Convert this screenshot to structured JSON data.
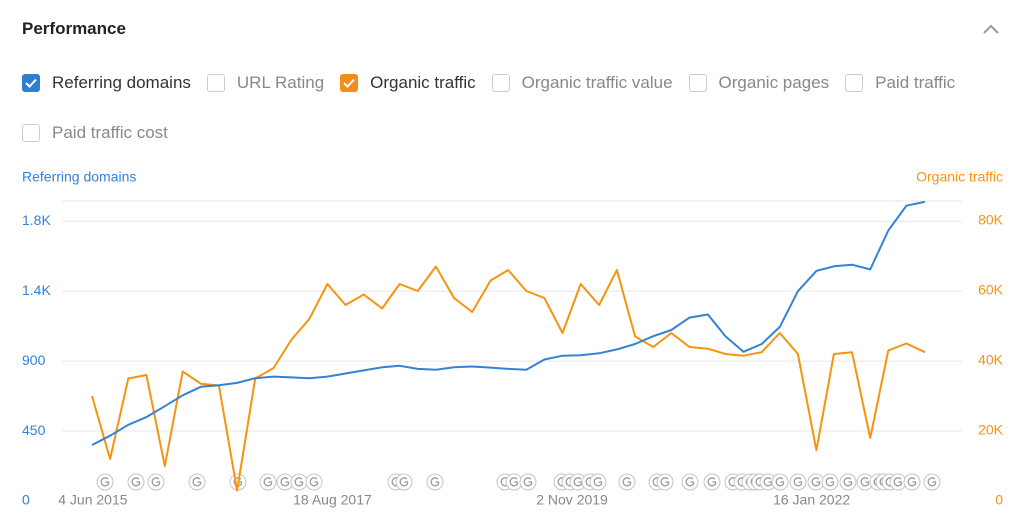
{
  "header": {
    "title": "Performance"
  },
  "filters": [
    {
      "label": "Referring domains",
      "checked": true,
      "color": "#2f7fd1"
    },
    {
      "label": "URL Rating",
      "checked": false
    },
    {
      "label": "Organic traffic",
      "checked": true,
      "color": "#f28c1c"
    },
    {
      "label": "Organic traffic value",
      "checked": false
    },
    {
      "label": "Organic pages",
      "checked": false
    },
    {
      "label": "Paid traffic",
      "checked": false
    },
    {
      "label": "Paid traffic cost",
      "checked": false
    }
  ],
  "chart_data": {
    "type": "line",
    "x": [
      "2015-06-01",
      "2015-08-01",
      "2015-10-01",
      "2015-12-01",
      "2016-02-01",
      "2016-04-01",
      "2016-06-01",
      "2016-08-01",
      "2016-10-01",
      "2016-12-01",
      "2017-02-01",
      "2017-04-01",
      "2017-06-01",
      "2017-08-01",
      "2017-10-01",
      "2017-12-01",
      "2018-02-01",
      "2018-04-01",
      "2018-06-01",
      "2018-08-01",
      "2018-10-01",
      "2018-12-01",
      "2019-02-01",
      "2019-04-01",
      "2019-06-01",
      "2019-08-01",
      "2019-10-01",
      "2019-12-01",
      "2020-02-01",
      "2020-04-01",
      "2020-06-01",
      "2020-08-01",
      "2020-10-01",
      "2020-12-01",
      "2021-02-01",
      "2021-04-01",
      "2021-06-01",
      "2021-08-01",
      "2021-10-01",
      "2021-12-01",
      "2022-02-01",
      "2022-04-01",
      "2022-06-01",
      "2022-08-01",
      "2022-10-01",
      "2022-12-01",
      "2023-02-01"
    ],
    "xlim": [
      "2015-06-01",
      "2023-02-25"
    ],
    "xticks": [
      {
        "value": "2015-06-04",
        "label": "4 Jun 2015"
      },
      {
        "value": "2017-08-18",
        "label": "18 Aug 2017"
      },
      {
        "value": "2019-11-02",
        "label": "2 Nov 2019"
      },
      {
        "value": "2022-01-16",
        "label": "16 Jan 2022"
      }
    ],
    "ylim": [
      0,
      1930
    ],
    "yticks": [
      0,
      450,
      900,
      {
        "value": 1350,
        "label": "1.4K"
      },
      {
        "value": 1800,
        "label": "1.8K"
      }
    ],
    "y2lim": [
      0,
      85700
    ],
    "y2ticks": [
      0,
      {
        "value": 20000,
        "label": "20K"
      },
      {
        "value": 40000,
        "label": "40K"
      },
      {
        "value": 60000,
        "label": "60K"
      },
      {
        "value": 80000,
        "label": "80K"
      }
    ],
    "grid": true,
    "series": [
      {
        "name": "Referring domains",
        "color": "#3582d3",
        "values": [
          360,
          420,
          490,
          540,
          610,
          680,
          735,
          745,
          760,
          790,
          800,
          795,
          790,
          800,
          820,
          840,
          860,
          870,
          850,
          845,
          860,
          865,
          858,
          850,
          845,
          910,
          935,
          938,
          950,
          975,
          1010,
          1060,
          1100,
          1180,
          1200,
          1060,
          960,
          1010,
          1120,
          1350,
          1480,
          1510,
          1520,
          1490,
          1740,
          1900,
          1925
        ]
      },
      {
        "name": "Organic traffic",
        "color": "#f6930f",
        "axis": "y2",
        "values": [
          30000,
          12000,
          35000,
          36000,
          10000,
          37000,
          33500,
          33000,
          3000,
          35000,
          38000,
          46000,
          52000,
          62000,
          56000,
          59000,
          55000,
          62000,
          60000,
          67000,
          58000,
          54000,
          63000,
          66000,
          60000,
          58000,
          48000,
          62000,
          56000,
          66000,
          47000,
          44000,
          48000,
          44000,
          43500,
          42000,
          41500,
          42500,
          48000,
          42000,
          14500,
          42000,
          42500,
          18000,
          43000,
          45000,
          42500
        ]
      }
    ]
  }
}
